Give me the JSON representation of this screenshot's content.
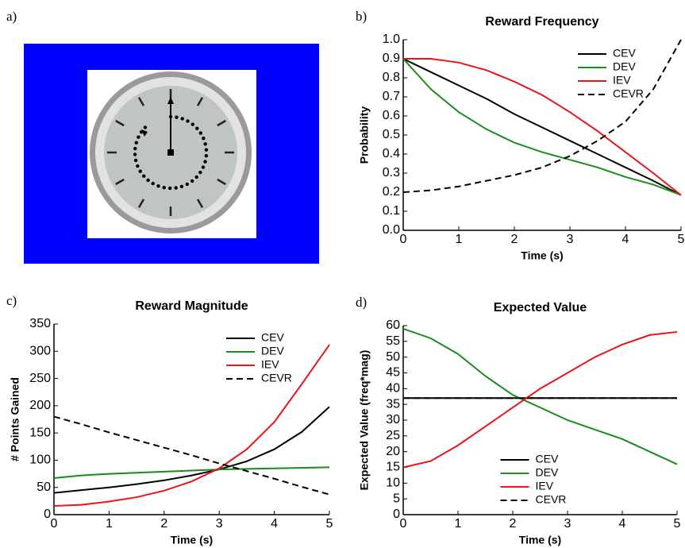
{
  "clock": {
    "panel_label": "a)"
  },
  "chart_data": [
    {
      "type": "line",
      "panel_label": "b)",
      "title": "Reward Frequency",
      "xlabel": "Time (s)",
      "ylabel": "Probability",
      "x": [
        0,
        0.5,
        1,
        1.5,
        2,
        2.5,
        3,
        3.5,
        4,
        4.5,
        5
      ],
      "xlim": [
        0,
        5
      ],
      "xticks": [
        0,
        1,
        2,
        3,
        4,
        5
      ],
      "ylim": [
        0,
        1
      ],
      "yticks": [
        {
          "value": 0,
          "label": "0.0"
        },
        0.1,
        0.2,
        0.3,
        0.4,
        0.5,
        0.6,
        0.7,
        0.8,
        0.9,
        {
          "value": 1,
          "label": "1.0"
        }
      ],
      "legend": "upper right",
      "series": [
        {
          "name": "CEV",
          "color": "#000000",
          "style": "solid",
          "values": [
            0.9,
            0.83,
            0.76,
            0.69,
            0.61,
            0.54,
            0.47,
            0.4,
            0.33,
            0.26,
            0.185
          ]
        },
        {
          "name": "DEV",
          "color": "#1a8c1a",
          "style": "solid",
          "values": [
            0.9,
            0.74,
            0.62,
            0.53,
            0.46,
            0.41,
            0.37,
            0.33,
            0.28,
            0.24,
            0.185
          ]
        },
        {
          "name": "IEV",
          "color": "#e8141c",
          "style": "solid",
          "values": [
            0.9,
            0.9,
            0.88,
            0.84,
            0.78,
            0.71,
            0.62,
            0.52,
            0.41,
            0.3,
            0.185
          ]
        },
        {
          "name": "CEVR",
          "color": "#000000",
          "style": "dashed",
          "values": [
            0.2,
            0.21,
            0.23,
            0.26,
            0.29,
            0.33,
            0.39,
            0.47,
            0.57,
            0.74,
            1.0
          ]
        }
      ]
    },
    {
      "type": "line",
      "panel_label": "c)",
      "title": "Reward Magnitude",
      "xlabel": "Time (s)",
      "ylabel": "# Points Gained",
      "x": [
        0,
        0.5,
        1,
        1.5,
        2,
        2.5,
        3,
        3.5,
        4,
        4.5,
        5
      ],
      "xlim": [
        0,
        5
      ],
      "xticks": [
        0,
        1,
        2,
        3,
        4,
        5
      ],
      "ylim": [
        0,
        350
      ],
      "yticks": [
        0,
        50,
        100,
        150,
        200,
        250,
        300,
        350
      ],
      "legend": "upper right",
      "series": [
        {
          "name": "CEV",
          "color": "#000000",
          "style": "solid",
          "values": [
            40,
            45,
            50,
            56,
            63,
            72,
            83,
            98,
            120,
            152,
            198
          ]
        },
        {
          "name": "DEV",
          "color": "#1a8c1a",
          "style": "solid",
          "values": [
            67,
            72,
            75,
            77,
            79,
            81,
            83,
            84,
            85,
            86,
            87
          ]
        },
        {
          "name": "IEV",
          "color": "#e8141c",
          "style": "solid",
          "values": [
            16,
            18,
            24,
            32,
            44,
            61,
            85,
            120,
            170,
            240,
            312
          ]
        },
        {
          "name": "CEVR",
          "color": "#000000",
          "style": "dashed",
          "values": [
            180,
            166,
            151,
            137,
            123,
            109,
            94,
            80,
            66,
            51,
            37
          ]
        }
      ]
    },
    {
      "type": "line",
      "panel_label": "d)",
      "title": "Expected Value",
      "xlabel": "Time (s)",
      "ylabel": "Expected Value (freq*mag)",
      "x": [
        0,
        0.5,
        1,
        1.5,
        2,
        2.5,
        3,
        3.5,
        4,
        4.5,
        5
      ],
      "xlim": [
        0,
        5
      ],
      "xticks": [
        0,
        1,
        2,
        3,
        4,
        5
      ],
      "ylim": [
        0,
        60
      ],
      "yticks": [
        0,
        5,
        10,
        15,
        20,
        25,
        30,
        35,
        40,
        45,
        50,
        55,
        60
      ],
      "legend": "lower center",
      "series": [
        {
          "name": "CEV",
          "color": "#000000",
          "style": "solid",
          "values": [
            37,
            37,
            37,
            37,
            37,
            37,
            37,
            37,
            37,
            37,
            37
          ]
        },
        {
          "name": "DEV",
          "color": "#1a8c1a",
          "style": "solid",
          "values": [
            59,
            56,
            51,
            44,
            38,
            34,
            30,
            27,
            24,
            20,
            16
          ]
        },
        {
          "name": "IEV",
          "color": "#e8141c",
          "style": "solid",
          "values": [
            15,
            17,
            22,
            28,
            34,
            40,
            45,
            50,
            54,
            57,
            58
          ]
        },
        {
          "name": "CEVR",
          "color": "#000000",
          "style": "dashed",
          "values": [
            37,
            37,
            37,
            37,
            37,
            37,
            37,
            37,
            37,
            37,
            37
          ]
        }
      ]
    }
  ]
}
